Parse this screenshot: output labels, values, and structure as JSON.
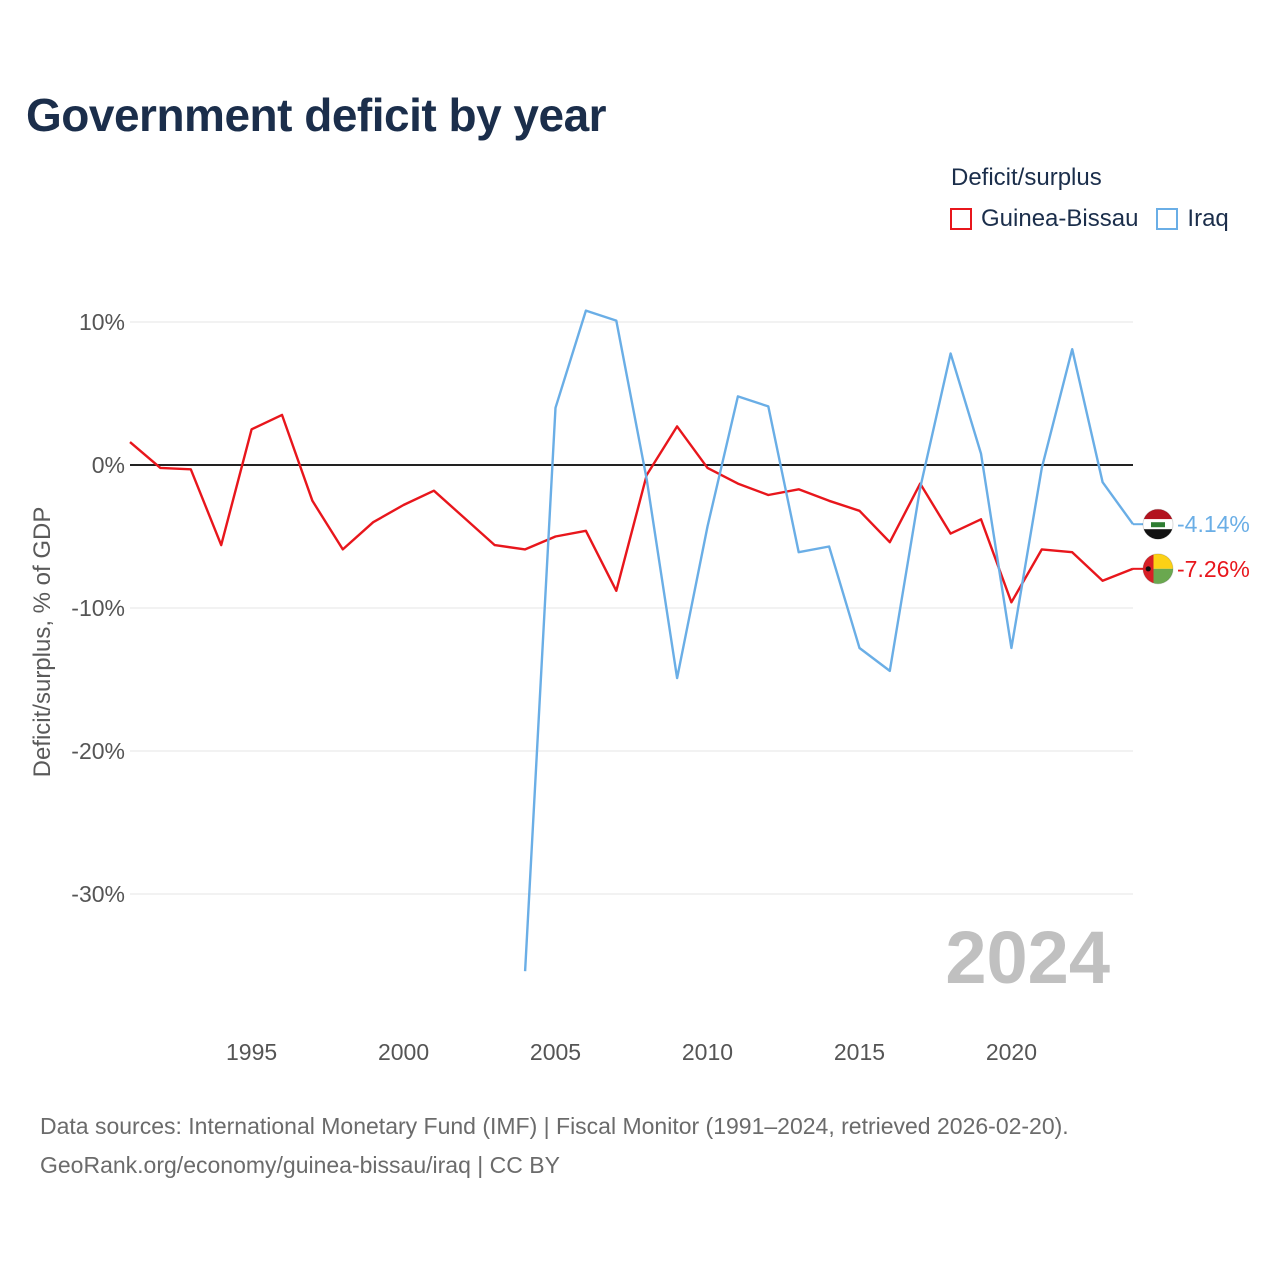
{
  "title": "Government deficit by year",
  "legend": {
    "title": "Deficit/surplus",
    "items": [
      {
        "label": "Guinea-Bissau",
        "color": "#e8161c"
      },
      {
        "label": "Iraq",
        "color": "#6aaee6"
      }
    ]
  },
  "footer": {
    "line1": "Data sources: International Monetary Fund (IMF) | Fiscal Monitor (1991–2024, retrieved 2026-02-20).",
    "line2": "GeoRank.org/economy/guinea-bissau/iraq | CC BY"
  },
  "chart_data": {
    "type": "line",
    "title": "Government deficit by year",
    "xlabel": "",
    "ylabel": "Deficit/surplus, % of GDP",
    "xlim": [
      1991,
      2024
    ],
    "ylim": [
      -38,
      12
    ],
    "x_ticks": [
      1995,
      2000,
      2005,
      2010,
      2015,
      2020
    ],
    "y_ticks": [
      {
        "value": 10,
        "label": "10%"
      },
      {
        "value": 0,
        "label": "0%"
      },
      {
        "value": -10,
        "label": "-10%"
      },
      {
        "value": -20,
        "label": "-20%"
      },
      {
        "value": -30,
        "label": "-30%"
      }
    ],
    "year_watermark": "2024",
    "series": [
      {
        "name": "Guinea-Bissau",
        "color": "#e8161c",
        "end_label": "-7.26%",
        "flag": "guinea-bissau-flag-icon",
        "x": [
          1991,
          1992,
          1993,
          1994,
          1995,
          1996,
          1997,
          1998,
          1999,
          2000,
          2001,
          2002,
          2003,
          2004,
          2005,
          2006,
          2007,
          2008,
          2009,
          2010,
          2011,
          2012,
          2013,
          2014,
          2015,
          2016,
          2017,
          2018,
          2019,
          2020,
          2021,
          2022,
          2023,
          2024
        ],
        "values": [
          1.6,
          -0.2,
          -0.3,
          -5.6,
          2.5,
          3.5,
          -2.5,
          -5.9,
          -4.0,
          -2.8,
          -1.8,
          -3.7,
          -5.6,
          -5.9,
          -5.0,
          -4.6,
          -8.8,
          -0.7,
          2.7,
          -0.2,
          -1.3,
          -2.1,
          -1.7,
          -2.5,
          -3.2,
          -5.4,
          -1.3,
          -4.8,
          -3.8,
          -9.6,
          -5.9,
          -6.1,
          -8.1,
          -7.26
        ]
      },
      {
        "name": "Iraq",
        "color": "#6aaee6",
        "end_label": "-4.14%",
        "flag": "iraq-flag-icon",
        "x": [
          2004,
          2005,
          2006,
          2007,
          2008,
          2009,
          2010,
          2011,
          2012,
          2013,
          2014,
          2015,
          2016,
          2017,
          2018,
          2019,
          2020,
          2021,
          2022,
          2023,
          2024
        ],
        "values": [
          -35.4,
          4.0,
          10.8,
          10.1,
          -1.0,
          -14.9,
          -4.3,
          4.8,
          4.1,
          -6.1,
          -5.7,
          -12.8,
          -14.4,
          -1.6,
          7.8,
          0.8,
          -12.8,
          -0.2,
          8.1,
          -1.2,
          -4.14
        ]
      }
    ]
  }
}
